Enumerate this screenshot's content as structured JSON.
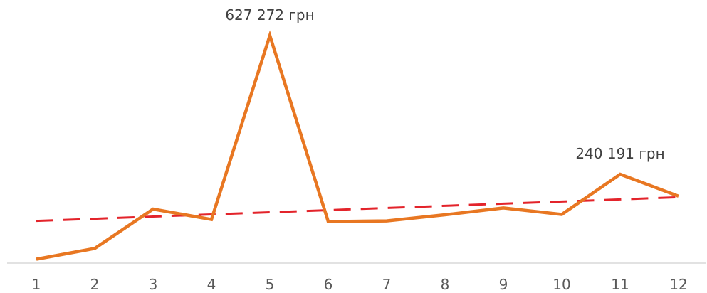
{
  "chart_data": {
    "type": "line",
    "title": "",
    "xlabel": "",
    "ylabel": "",
    "categories": [
      "1",
      "2",
      "3",
      "4",
      "5",
      "6",
      "7",
      "8",
      "9",
      "10",
      "11",
      "12"
    ],
    "series": [
      {
        "values": [
          3000,
          33000,
          143000,
          114000,
          627272,
          108000,
          110000,
          127000,
          146000,
          128000,
          240191,
          179000
        ],
        "color": "#E87722",
        "style": "solid"
      },
      {
        "values": [
          110000,
          116000,
          122000,
          128000,
          134000,
          140000,
          146000,
          152000,
          158000,
          164000,
          170000,
          176000
        ],
        "color": "#E3242B",
        "style": "dashed",
        "role": "trendline"
      }
    ],
    "data_labels": [
      {
        "index": 4,
        "text": "627 272 грн"
      },
      {
        "index": 10,
        "text": "240 191 грн"
      }
    ],
    "ylim": [
      0,
      627272
    ],
    "grid": false,
    "legend": "none"
  }
}
